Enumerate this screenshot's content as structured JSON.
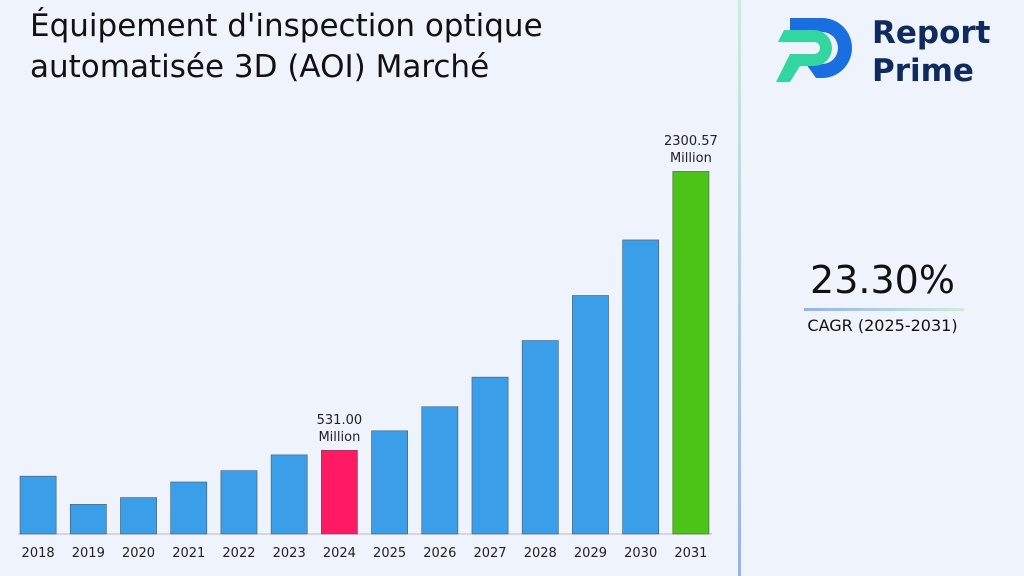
{
  "chart_data": {
    "type": "bar",
    "title": "Équipement d'inspection optique automatisée 3D (AOI) Marché",
    "categories": [
      "2018",
      "2019",
      "2020",
      "2021",
      "2022",
      "2023",
      "2024",
      "2025",
      "2026",
      "2027",
      "2028",
      "2029",
      "2030",
      "2031"
    ],
    "values": [
      367,
      188,
      231,
      330,
      402,
      502,
      531.0,
      654.72,
      807.27,
      995.36,
      1227.28,
      1513.23,
      1865.81,
      2300.57
    ],
    "value_labels": [
      null,
      null,
      null,
      null,
      null,
      null,
      "531.00 Million",
      null,
      null,
      null,
      null,
      null,
      null,
      "2300.57 Million"
    ],
    "colors": [
      "#3a9fe8",
      "#3a9fe8",
      "#3a9fe8",
      "#3a9fe8",
      "#3a9fe8",
      "#3a9fe8",
      "#ff1a63",
      "#3a9fe8",
      "#3a9fe8",
      "#3a9fe8",
      "#3a9fe8",
      "#3a9fe8",
      "#3a9fe8",
      "#4cc417"
    ],
    "ylim": [
      0,
      2500
    ],
    "grid": false
  },
  "sidebar": {
    "logo": [
      "Report",
      "Prime"
    ],
    "cagr": "23.30%",
    "cagr_label": "CAGR (2025-2031)"
  }
}
